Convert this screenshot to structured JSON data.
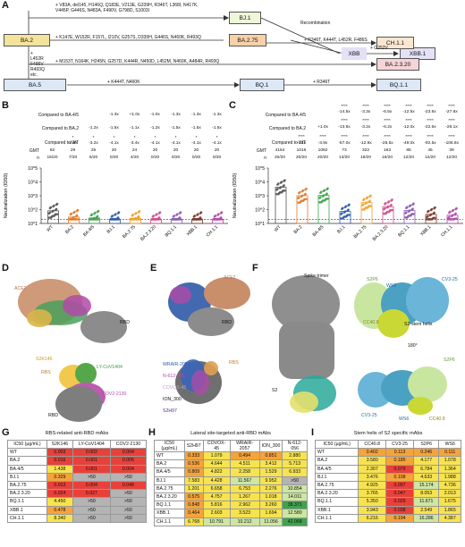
{
  "panel_letters": [
    "A",
    "B",
    "C",
    "D",
    "E",
    "F",
    "G",
    "H",
    "I"
  ],
  "panelA": {
    "nodes": [
      "BA.2",
      "BJ.1",
      "XBB.1",
      "BA.2.75",
      "CH.1.1",
      "BA.2.3.20",
      "BA.5",
      "BQ.1",
      "BQ.1.1"
    ],
    "edge_bj1": "+ V83A, del145, H146Q, Q183E, V213E, G339H, R346T, L368I, N417K,\nV445P, G446S, N483A, F490V, G798D, S1003I",
    "recombination": "Recombination",
    "xbb_label": "XBB",
    "edge_xbb1": "+ G252V",
    "edge_ba275": "+ K147E, W152R, F157L, I210V, G257S, D339H, G446S, N460K, R493Q",
    "edge_ch11": "+ R346T, K444T, L452R, F486S",
    "edge_ba2320": "+ M153T, N164K, H245N, G257D, K444R, N450D, L452M, N460K, A484R, R493Q",
    "edge_ba5": "+\nL452R\nF486V\nR493Q\netc.",
    "edge_bq1": "+ K444T, N460K",
    "edge_bq11": "+ R346T"
  },
  "panelB": {
    "row_labels": [
      "Compared to BA.4/5",
      "Compared to BA.2",
      "Compared to WT",
      "GMT",
      "n"
    ],
    "vs_ba45": [
      "",
      "",
      "",
      "-1.3x",
      "+1.0x",
      "-1.0x",
      "-1.3x",
      "-1.3x",
      "-1.3x"
    ],
    "vs_ba2": [
      "",
      "",
      "-1.2x",
      "-1.5x",
      "-1.1x",
      "-1.2x",
      "-1.5x",
      "-1.5x",
      "-1.5x"
    ],
    "vs_wt_sig": [
      "",
      "*",
      "*",
      "*",
      "*",
      "*",
      "*",
      "*",
      "*"
    ],
    "vs_wt": [
      "",
      "-2.8x",
      "-3.2x",
      "-4.1x",
      "-3.4x",
      "-4.1x",
      "-4.1x",
      "-4.1x",
      "-4.1x"
    ],
    "gmt": [
      "82",
      "29",
      "25",
      "20",
      "24",
      "20",
      "20",
      "20",
      "20"
    ],
    "n": [
      "15/20",
      "7/20",
      "5/20",
      "0/20",
      "4/20",
      "0/20",
      "0/20",
      "0/20",
      "0/20"
    ],
    "ylabel": "Neutralization (ID50)",
    "yticks": [
      "10^1",
      "10^2",
      "10^3",
      "10^4",
      "10^5"
    ]
  },
  "panelC": {
    "vs_ba45_sig": [
      "",
      "",
      "",
      "****",
      "****",
      "****",
      "****",
      "****",
      "****"
    ],
    "vs_ba45": [
      "",
      "",
      "",
      "-14.5x",
      "-3.3x",
      "-6.5x",
      "-12.5x",
      "-23.6x",
      "-27.6x"
    ],
    "vs_ba2_sig": [
      "",
      "",
      "",
      "****",
      "****",
      "****",
      "****",
      "****",
      "****"
    ],
    "vs_ba2": [
      "",
      "",
      "+1.0x",
      "-13.9x",
      "-3.2x",
      "-6.2x",
      "-12.0x",
      "-22.6x",
      "-26.1x"
    ],
    "vs_wt_sig": [
      "",
      "****",
      "****",
      "****",
      "****",
      "****",
      "****",
      "****",
      "****"
    ],
    "vs_wt": [
      "",
      "-4.1x",
      "-3.9x",
      "-57.0x",
      "-12.9x",
      "-25.5x",
      "-49.0x",
      "-92.5x",
      "-106.8x"
    ],
    "gmt": [
      "4164",
      "1016",
      "1062",
      "73",
      "322",
      "163",
      "85",
      "45",
      "39"
    ],
    "n": [
      "20/20",
      "20/20",
      "20/20",
      "13/20",
      "18/20",
      "16/20",
      "12/20",
      "12/20",
      "12/20"
    ]
  },
  "variants_x": [
    "WT",
    "BA.2",
    "BA.4/5",
    "BJ.1",
    "BA.2.75",
    "BA.2.3.20",
    "BQ.1.1",
    "XBB.1",
    "CH.1.1"
  ],
  "panelD": {
    "labels": [
      "ACE2",
      "RBD",
      "S2K146",
      "RBS",
      "LY-CoV1404",
      "COV2-2130",
      "RBD"
    ]
  },
  "panelE": {
    "labels": [
      "ACE2",
      "RBD",
      "WRAIR-2057",
      "N-612-056",
      "COVOX-45",
      "ION_300",
      "S2H97",
      "RBS"
    ]
  },
  "panelF": {
    "labels": [
      "Spike trimer",
      "S2",
      "S2P6",
      "WS6",
      "CV3-25",
      "CC40.8",
      "S2-stem helix",
      "180°",
      "S2P6",
      "CV3-25",
      "WS6",
      "CC40.8"
    ]
  },
  "tableG": {
    "title": "RBS-related anti-RBD mAbs",
    "headers": [
      "IC50 (µg/mL)",
      "S2K146",
      "LY-CoV1404",
      "COV2-2130"
    ],
    "rows": [
      [
        "WT",
        "0.003",
        "0.002",
        "0.004"
      ],
      [
        "BA.2",
        "0.016",
        "0.001",
        "0.005"
      ],
      [
        "BA.4/5",
        "1.438",
        "0.001",
        "0.004"
      ],
      [
        "BJ.1",
        "0.329",
        ">50",
        ">50"
      ],
      [
        "BA.2.75",
        "0.013",
        "0.004",
        "0.048"
      ],
      [
        "BA.2.3.20",
        "0.024",
        "0.027",
        ">50"
      ],
      [
        "BQ.1.1",
        "4.450",
        ">50",
        ">50"
      ],
      [
        "XBB.1",
        "0.478",
        ">50",
        ">50"
      ],
      [
        "CH.1.1",
        "8.340",
        ">50",
        ">50"
      ]
    ]
  },
  "tableH": {
    "title": "Lateral site-targeted anti-RBD mAbs",
    "headers": [
      "IC50 (µg/mL)",
      "S2H97",
      "COVOX-45",
      "WRAIR-2057",
      "ION_300",
      "N-612-056"
    ],
    "rows": [
      [
        "WT",
        "0.333",
        "1.079",
        "0.494",
        "0.851",
        "2.880"
      ],
      [
        "BA.2",
        "0.536",
        "4.644",
        "4.511",
        "3.412",
        "5.713"
      ],
      [
        "BA.4/5",
        "0.809",
        "4.822",
        "2.258",
        "1.529",
        "6.933"
      ],
      [
        "BJ.1",
        "7.583",
        "4.428",
        "11.567",
        "9.952",
        ">50"
      ],
      [
        "BA.2.75",
        "1.201",
        "6.658",
        "6.753",
        "2.276",
        "10.854"
      ],
      [
        "BA.2.3.20",
        "0.575",
        "4.757",
        "1.267",
        "1.018",
        "14.011"
      ],
      [
        "BQ.1.1",
        "0.848",
        "5.816",
        "2.962",
        "3.260",
        "38.371"
      ],
      [
        "XBB.1",
        "0.464",
        "2.603",
        "3.523",
        "1.694",
        "12.580"
      ],
      [
        "CH.1.1",
        "6.768",
        "10.791",
        "10.212",
        "11.056",
        "42.068"
      ]
    ]
  },
  "tableI": {
    "title": "Stem helix of S2 specific mAbs",
    "headers": [
      "IC50 (µg/mL)",
      "CC40.8",
      "CV3-25",
      "S2P6",
      "WS6"
    ],
    "rows": [
      [
        "WT",
        "0.402",
        "0.113",
        "0.246",
        "0.111"
      ],
      [
        "BA.2",
        "3.580",
        "0.185",
        "4.177",
        "1.078"
      ],
      [
        "BA.4/5",
        "2.307",
        "0.079",
        "6.784",
        "1.364"
      ],
      [
        "BJ.1",
        "3.476",
        "0.108",
        "4.633",
        "1.988"
      ],
      [
        "BA.2.75",
        "4.925",
        "0.097",
        "15.174",
        "4.736"
      ],
      [
        "BA.2.3.20",
        "3.765",
        "0.047",
        "8.053",
        "2.013"
      ],
      [
        "BQ.1.1",
        "5.350",
        "0.029",
        "11.671",
        "1.675"
      ],
      [
        "XBB.1",
        "3.943",
        "0.038",
        "2.549",
        "1.865"
      ],
      [
        "CH.1.1",
        "6.216",
        "0.194",
        "16.286",
        "4.387"
      ]
    ]
  },
  "colors": {
    "red": "#e8413a",
    "orange": "#f5a33b",
    "yellow": "#f7e34f",
    "lightgreen": "#cde6a2",
    "green": "#3fa34d",
    "grey": "#b4b4b4"
  }
}
